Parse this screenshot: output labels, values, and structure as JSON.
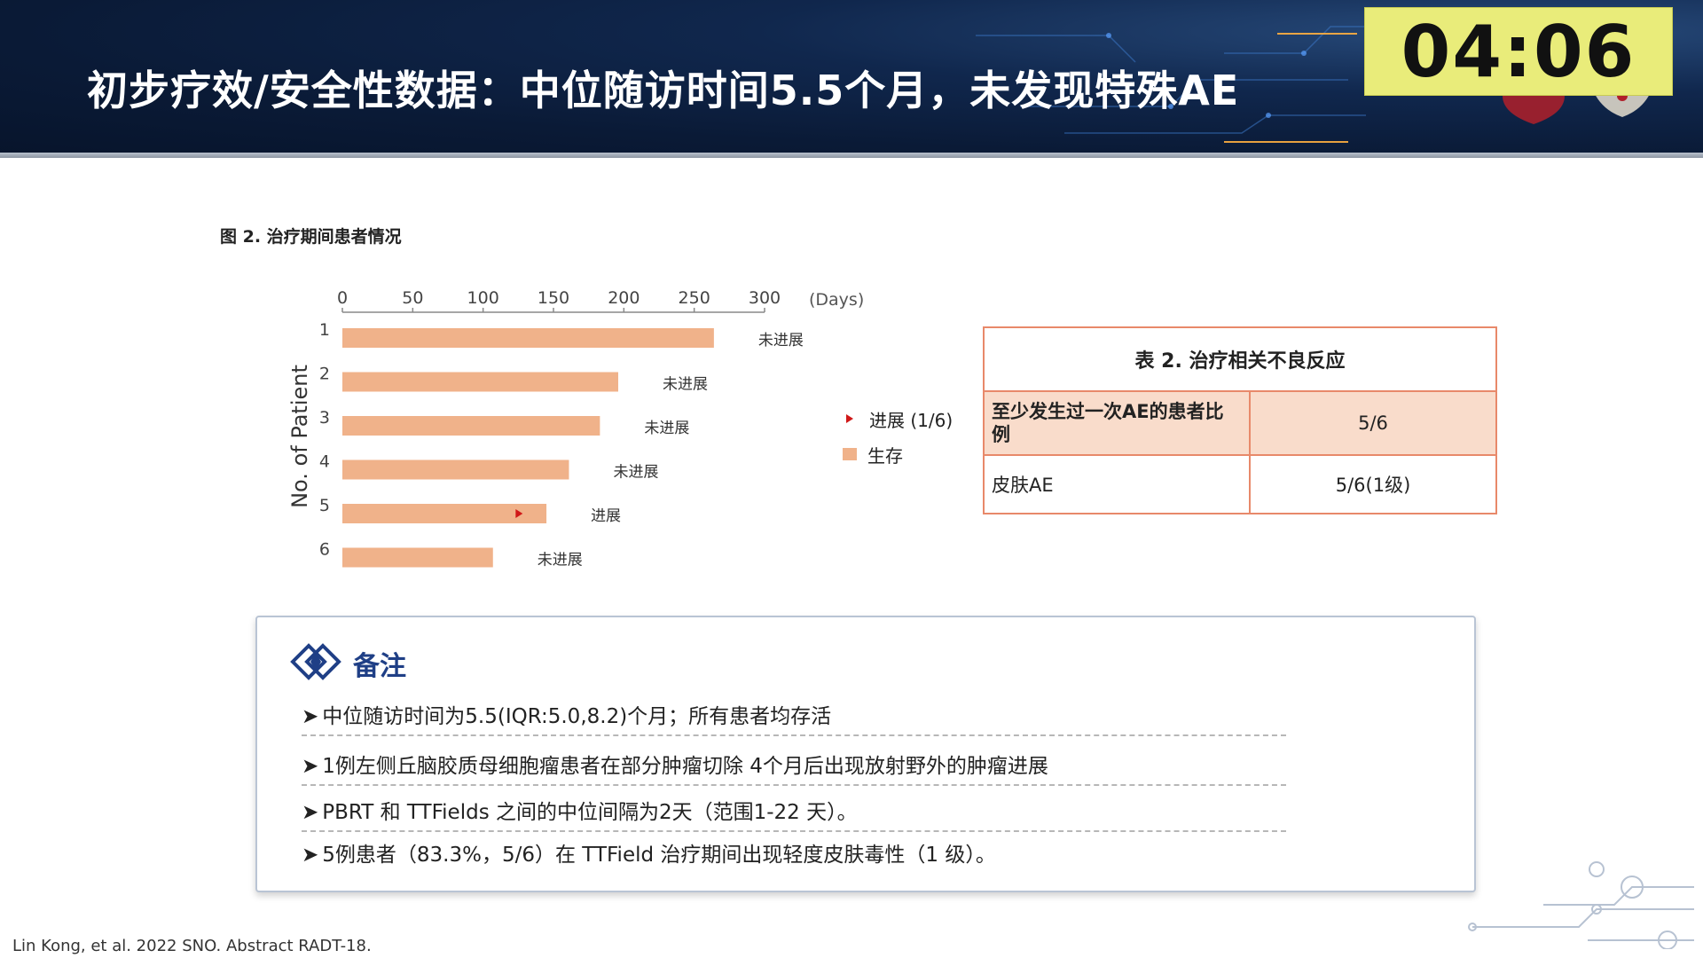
{
  "header": {
    "title": "初步疗效/安全性数据：中位随访时间5.5个月，未发现特殊AE",
    "timer": "04:06"
  },
  "figure": {
    "caption": "图 2. 治疗期间患者情况"
  },
  "chart_data": {
    "type": "bar",
    "orientation": "horizontal",
    "title": "图 2. 治疗期间患者情况",
    "xlabel": "(Days)",
    "ylabel": "No. of Patient",
    "xlim": [
      0,
      300
    ],
    "xticks": [
      0,
      50,
      100,
      150,
      200,
      250,
      300
    ],
    "categories": [
      "1",
      "2",
      "3",
      "4",
      "5",
      "6"
    ],
    "values": [
      264,
      196,
      183,
      161,
      145,
      107
    ],
    "labels": [
      "未进展",
      "未进展",
      "未进展",
      "未进展",
      "进展",
      "未进展"
    ],
    "progression_markers": [
      {
        "patient": "5",
        "day": 125
      }
    ],
    "series_color": "#f0b28a",
    "marker_color": "#d01818",
    "legend": [
      {
        "label": "进展 (1/6)",
        "symbol": "triangle",
        "color": "#d01818"
      },
      {
        "label": "生存",
        "symbol": "square",
        "color": "#f0b28a"
      }
    ],
    "legend_position": "right",
    "grid": false
  },
  "table": {
    "title": "表 2. 治疗相关不良反应",
    "rows": [
      {
        "label": "至少发生过一次AE的患者比例",
        "value": "5/6"
      },
      {
        "label": "皮肤AE",
        "value": "5/6(1级)"
      }
    ],
    "border_color": "#e8896a",
    "highlight_color": "#f9dccb"
  },
  "notes": {
    "title": "备注",
    "items": [
      "中位随访时间为5.5(IQR:5.0,8.2)个月；所有患者均存活",
      "1例左侧丘脑胶质母细胞瘤患者在部分肿瘤切除 4个月后出现放射野外的肿瘤进展",
      "PBRT 和 TTFields 之间的中位间隔为2天（范围1-22 天）。",
      "5例患者（83.3%，5/6）在 TTField 治疗期间出现轻度皮肤毒性（1 级）。"
    ]
  },
  "citation": "Lin Kong, et al. 2022 SNO. Abstract RADT-18."
}
